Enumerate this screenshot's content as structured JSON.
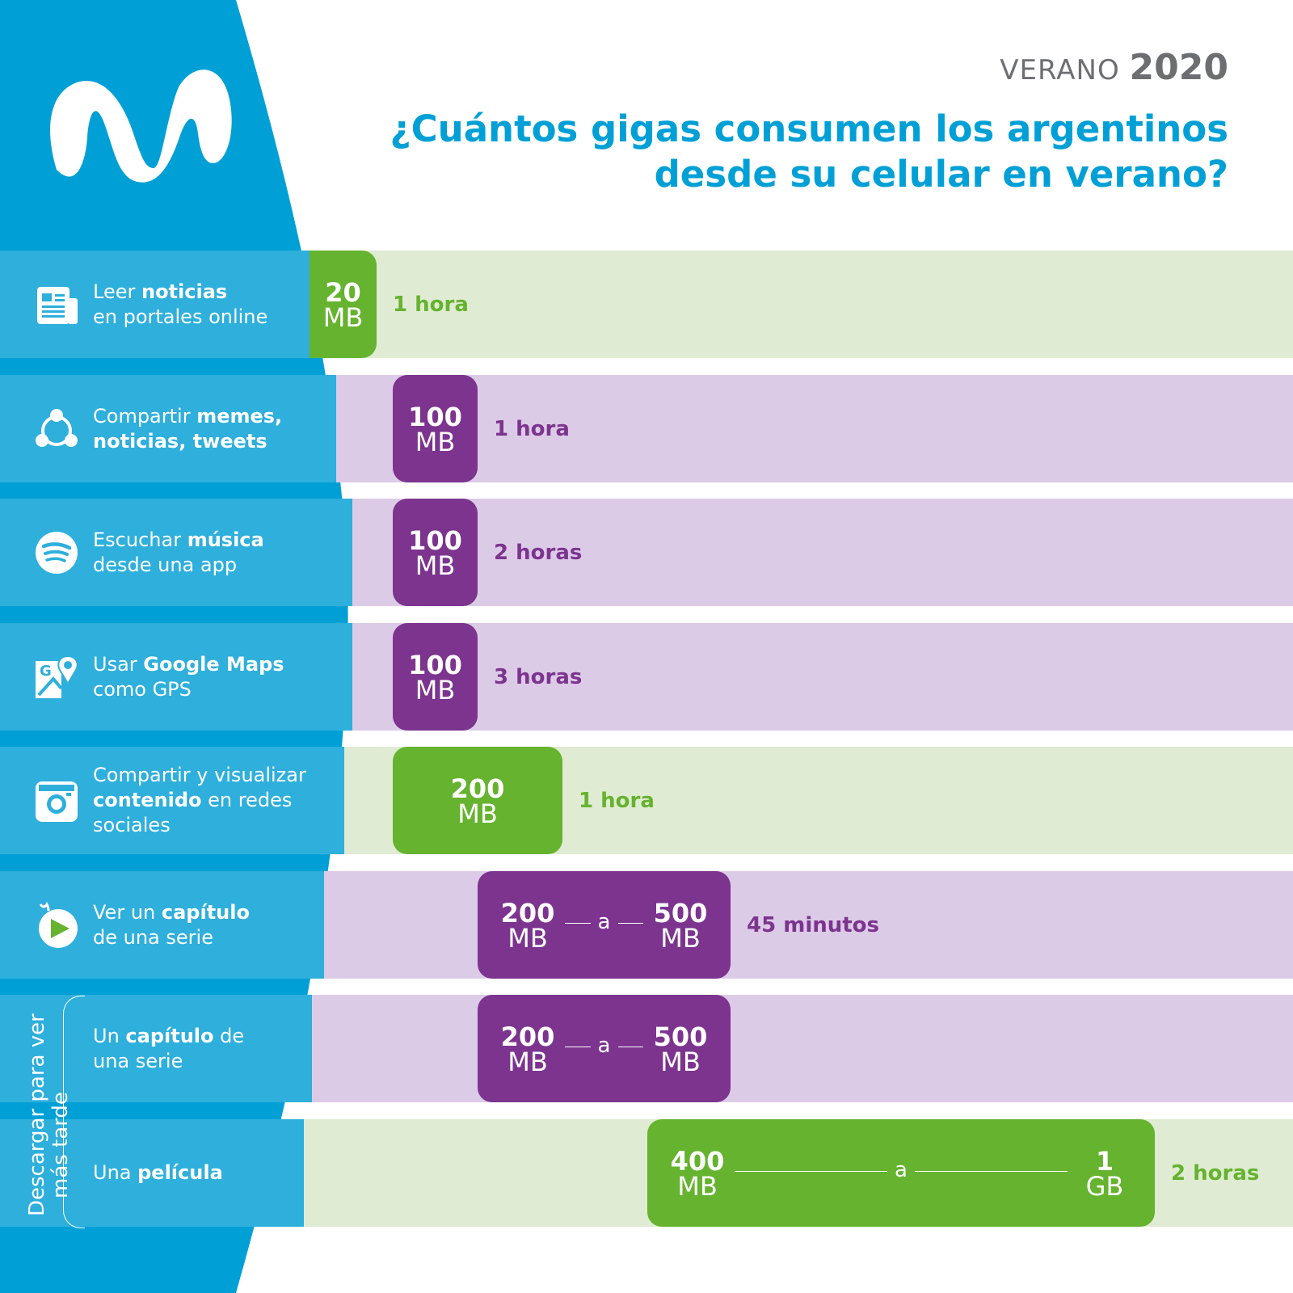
{
  "header": {
    "season": "VERANO",
    "year": "2020",
    "title_line1": "¿Cuántos gigas consumen los argentinos",
    "title_line2": "desde su celular en verano?"
  },
  "colors": {
    "blue": "#00a0d6",
    "band_blue": "#2eafdc",
    "green": "#65b32e",
    "purple": "#7c348f",
    "light_green": "#e0ebd3",
    "light_purple": "#dccbe6",
    "gray": "#6d6e71"
  },
  "group_label": {
    "line1": "Descargar para ver",
    "line2": "más tarde"
  },
  "chart_data": {
    "type": "bar",
    "unit": "MB",
    "rows": [
      {
        "label_parts": [
          [
            "Leer ",
            false
          ],
          [
            "noticias",
            true
          ],
          [
            "\n",
            false
          ],
          [
            "en portales online",
            false
          ]
        ],
        "icon": "newspaper-icon",
        "color": "green",
        "min": 20,
        "max": 20,
        "min_num": "20",
        "min_unit": "MB",
        "max_num": "",
        "max_unit": "",
        "connector": "",
        "duration": "1 hora"
      },
      {
        "label_parts": [
          [
            "Compartir ",
            false
          ],
          [
            "memes,",
            true
          ],
          [
            "\n",
            false
          ],
          [
            "noticias, tweets",
            true
          ]
        ],
        "icon": "share-icon",
        "color": "purple",
        "min": 100,
        "max": 100,
        "min_num": "100",
        "min_unit": "MB",
        "max_num": "",
        "max_unit": "",
        "connector": "",
        "duration": "1 hora"
      },
      {
        "label_parts": [
          [
            "Escuchar ",
            false
          ],
          [
            "música",
            true
          ],
          [
            "\n",
            false
          ],
          [
            "desde una app",
            false
          ]
        ],
        "icon": "spotify-icon",
        "color": "purple",
        "min": 100,
        "max": 100,
        "min_num": "100",
        "min_unit": "MB",
        "max_num": "",
        "max_unit": "",
        "connector": "",
        "duration": "2 horas"
      },
      {
        "label_parts": [
          [
            "Usar ",
            false
          ],
          [
            "Google Maps",
            true
          ],
          [
            "\n",
            false
          ],
          [
            "como GPS",
            false
          ]
        ],
        "icon": "google-maps-icon",
        "color": "purple",
        "min": 100,
        "max": 100,
        "min_num": "100",
        "min_unit": "MB",
        "max_num": "",
        "max_unit": "",
        "connector": "",
        "duration": "3 horas"
      },
      {
        "label_parts": [
          [
            "Compartir y visualizar",
            false
          ],
          [
            "\n",
            false
          ],
          [
            "contenido",
            true
          ],
          [
            " en redes",
            false
          ],
          [
            "\n",
            false
          ],
          [
            "sociales",
            false
          ]
        ],
        "icon": "instagram-icon",
        "color": "green",
        "min": 200,
        "max": 200,
        "min_num": "200",
        "min_unit": "MB",
        "max_num": "",
        "max_unit": "",
        "connector": "",
        "duration": "1 hora"
      },
      {
        "label_parts": [
          [
            "Ver un ",
            false
          ],
          [
            "capítulo",
            true
          ],
          [
            "\n",
            false
          ],
          [
            "de una serie",
            false
          ]
        ],
        "icon": "movistar-play-icon",
        "color": "purple",
        "min": 200,
        "max": 500,
        "min_num": "200",
        "min_unit": "MB",
        "max_num": "500",
        "max_unit": "MB",
        "connector": "a",
        "duration": "45 minutos"
      },
      {
        "label_parts": [
          [
            "Un ",
            false
          ],
          [
            "capítulo",
            true
          ],
          [
            " de",
            false
          ],
          [
            "\n",
            false
          ],
          [
            "una serie",
            false
          ]
        ],
        "icon": "",
        "color": "purple",
        "min": 200,
        "max": 500,
        "min_num": "200",
        "min_unit": "MB",
        "max_num": "500",
        "max_unit": "MB",
        "connector": "a",
        "duration": ""
      },
      {
        "label_parts": [
          [
            "Una ",
            false
          ],
          [
            "película",
            true
          ]
        ],
        "icon": "",
        "color": "green",
        "min": 400,
        "max": 1000,
        "min_num": "400",
        "min_unit": "MB",
        "max_num": "1",
        "max_unit": "GB",
        "connector": "a",
        "duration": "2 horas"
      }
    ]
  }
}
